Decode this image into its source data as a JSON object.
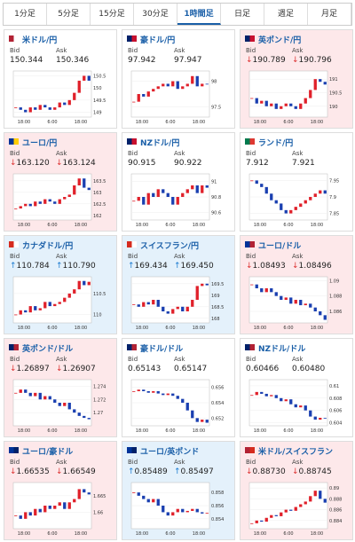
{
  "tabs": {
    "items": [
      "1分足",
      "5分足",
      "15分足",
      "30分足",
      "1時間足",
      "日足",
      "週足",
      "月足"
    ],
    "active": 4
  },
  "bid_label": "Bid",
  "ask_label": "Ask",
  "time_labels": [
    "18:00",
    "6:00",
    "18:00"
  ],
  "panels": [
    {
      "name": "米ドル/円",
      "bid": "150.344",
      "ask": "150.346",
      "trend": "flat",
      "flag": [
        "#b22234",
        "#fff"
      ],
      "ylim": [
        148.8,
        150.7
      ],
      "yticks": [
        149,
        149.5,
        150,
        150.5
      ],
      "closes": [
        149.2,
        149.1,
        149.0,
        149.2,
        149.1,
        149.3,
        149.2,
        149.1,
        149.2,
        149.4,
        149.3,
        149.5,
        149.8,
        150.3,
        150.5,
        150.3
      ]
    },
    {
      "name": "豪ドル/円",
      "bid": "97.942",
      "ask": "97.947",
      "trend": "flat",
      "flag": [
        "#012169",
        "#c8102e"
      ],
      "ylim": [
        97.3,
        98.2
      ],
      "yticks": [
        97.5,
        98
      ],
      "closes": [
        97.6,
        97.75,
        97.7,
        97.8,
        97.85,
        97.9,
        97.95,
        97.9,
        98.0,
        97.85,
        97.9,
        97.95,
        98.1,
        97.9,
        97.95,
        97.94
      ]
    },
    {
      "name": "英ポンド/円",
      "bid": "190.789",
      "ask": "190.796",
      "trend": "down",
      "flag": [
        "#012169",
        "#c8102e"
      ],
      "ylim": [
        189.6,
        191.3
      ],
      "yticks": [
        190,
        190.5,
        191
      ],
      "closes": [
        190.3,
        190.1,
        190.2,
        190.0,
        190.1,
        189.9,
        190.0,
        190.1,
        190.0,
        189.9,
        190.1,
        190.3,
        190.6,
        191.0,
        190.9,
        190.8
      ]
    },
    {
      "name": "ユーロ/円",
      "bid": "163.120",
      "ask": "163.124",
      "trend": "down",
      "flag": [
        "#003399",
        "#ffcc00"
      ],
      "ylim": [
        161.8,
        163.8
      ],
      "yticks": [
        162,
        162.5,
        163,
        163.5
      ],
      "closes": [
        162.3,
        162.4,
        162.5,
        162.4,
        162.6,
        162.5,
        162.7,
        162.6,
        162.5,
        162.7,
        162.8,
        162.9,
        163.3,
        163.6,
        163.2,
        163.1
      ]
    },
    {
      "name": "NZドル/円",
      "bid": "90.915",
      "ask": "90.922",
      "trend": "flat",
      "flag": [
        "#012169",
        "#c8102e"
      ],
      "ylim": [
        90.5,
        91.1
      ],
      "yticks": [
        90.6,
        90.8,
        91
      ],
      "closes": [
        90.75,
        90.8,
        90.7,
        90.85,
        90.8,
        90.9,
        90.85,
        90.8,
        90.7,
        90.8,
        90.85,
        90.9,
        90.95,
        90.85,
        90.95,
        90.92
      ]
    },
    {
      "name": "ランド/円",
      "bid": "7.912",
      "ask": "7.921",
      "trend": "flat",
      "flag": [
        "#007a4d",
        "#de3831"
      ],
      "ylim": [
        7.83,
        7.97
      ],
      "yticks": [
        7.85,
        7.9,
        7.95
      ],
      "closes": [
        7.95,
        7.94,
        7.93,
        7.91,
        7.89,
        7.88,
        7.86,
        7.85,
        7.86,
        7.87,
        7.88,
        7.89,
        7.9,
        7.91,
        7.92,
        7.91
      ]
    },
    {
      "name": "カナダドル/円",
      "bid": "110.784",
      "ask": "110.790",
      "trend": "up",
      "flag": [
        "#d52b1e",
        "#fff"
      ],
      "ylim": [
        109.8,
        110.9
      ],
      "yticks": [
        110,
        110.5
      ],
      "closes": [
        110.0,
        110.1,
        110.05,
        110.2,
        110.1,
        110.15,
        110.3,
        110.2,
        110.25,
        110.3,
        110.4,
        110.5,
        110.6,
        110.8,
        110.7,
        110.78
      ]
    },
    {
      "name": "スイスフラン/円",
      "bid": "169.434",
      "ask": "169.450",
      "trend": "up",
      "flag": [
        "#d52b1e",
        "#fff"
      ],
      "ylim": [
        167.8,
        169.8
      ],
      "yticks": [
        168,
        168.5,
        169,
        169.5
      ],
      "closes": [
        168.6,
        168.5,
        168.7,
        168.6,
        168.8,
        168.5,
        168.3,
        168.2,
        168.4,
        168.5,
        168.3,
        168.5,
        168.8,
        169.4,
        169.5,
        169.43
      ]
    },
    {
      "name": "ユーロ/ドル",
      "bid": "1.08493",
      "ask": "1.08496",
      "trend": "down",
      "flag": [
        "#003399",
        "#b22234"
      ],
      "ylim": [
        1.0845,
        1.0905
      ],
      "yticks": [
        1.086,
        1.088,
        1.09
      ],
      "closes": [
        1.0895,
        1.089,
        1.0885,
        1.089,
        1.0885,
        1.088,
        1.0875,
        1.0878,
        1.087,
        1.0875,
        1.0868,
        1.087,
        1.0865,
        1.086,
        1.0855,
        1.0849
      ]
    },
    {
      "name": "英ポンド/ドル",
      "bid": "1.26897",
      "ask": "1.26907",
      "trend": "down",
      "flag": [
        "#012169",
        "#b22234"
      ],
      "ylim": [
        1.268,
        1.275
      ],
      "yticks": [
        1.27,
        1.272,
        1.274
      ],
      "closes": [
        1.273,
        1.2735,
        1.273,
        1.2725,
        1.273,
        1.272,
        1.2725,
        1.272,
        1.2715,
        1.271,
        1.2715,
        1.2705,
        1.27,
        1.2695,
        1.2692,
        1.269
      ]
    },
    {
      "name": "豪ドル/ドル",
      "bid": "0.65143",
      "ask": "0.65147",
      "trend": "flat",
      "flag": [
        "#012169",
        "#b22234"
      ],
      "ylim": [
        0.651,
        0.657
      ],
      "yticks": [
        0.652,
        0.654,
        0.656
      ],
      "closes": [
        0.6555,
        0.6557,
        0.6555,
        0.6553,
        0.6555,
        0.6552,
        0.655,
        0.6552,
        0.6549,
        0.6545,
        0.654,
        0.653,
        0.652,
        0.6515,
        0.6518,
        0.6514
      ]
    },
    {
      "name": "NZドル/ドル",
      "bid": "0.60466",
      "ask": "0.60480",
      "trend": "flat",
      "flag": [
        "#012169",
        "#b22234"
      ],
      "ylim": [
        0.6035,
        0.611
      ],
      "yticks": [
        0.604,
        0.606,
        0.608,
        0.61
      ],
      "closes": [
        0.6085,
        0.609,
        0.6087,
        0.6083,
        0.6085,
        0.608,
        0.6075,
        0.6078,
        0.607,
        0.6065,
        0.6068,
        0.606,
        0.605,
        0.6045,
        0.6048,
        0.6047
      ]
    },
    {
      "name": "ユーロ/豪ドル",
      "bid": "1.66535",
      "ask": "1.66549",
      "trend": "down",
      "flag": [
        "#003399",
        "#012169"
      ],
      "ylim": [
        1.655,
        1.669
      ],
      "yticks": [
        1.66,
        1.665
      ],
      "closes": [
        1.659,
        1.658,
        1.66,
        1.659,
        1.661,
        1.66,
        1.662,
        1.661,
        1.662,
        1.663,
        1.661,
        1.663,
        1.664,
        1.667,
        1.666,
        1.6654
      ]
    },
    {
      "name": "ユーロ/英ポンド",
      "bid": "0.85489",
      "ask": "0.85497",
      "trend": "up",
      "flag": [
        "#003399",
        "#012169"
      ],
      "ylim": [
        0.8525,
        0.8595
      ],
      "yticks": [
        0.854,
        0.856,
        0.858
      ],
      "closes": [
        0.858,
        0.8575,
        0.857,
        0.8565,
        0.857,
        0.856,
        0.855,
        0.8545,
        0.855,
        0.8555,
        0.855,
        0.8552,
        0.8555,
        0.855,
        0.8548,
        0.8549
      ]
    },
    {
      "name": "米ドル/スイスフラン",
      "bid": "0.88730",
      "ask": "0.88745",
      "trend": "down",
      "flag": [
        "#b22234",
        "#d52b1e"
      ],
      "ylim": [
        0.8825,
        0.891
      ],
      "yticks": [
        0.884,
        0.886,
        0.888,
        0.89
      ],
      "closes": [
        0.8835,
        0.884,
        0.8838,
        0.8845,
        0.885,
        0.8848,
        0.8855,
        0.886,
        0.8858,
        0.8865,
        0.887,
        0.8875,
        0.8885,
        0.8895,
        0.888,
        0.8873
      ]
    }
  ]
}
